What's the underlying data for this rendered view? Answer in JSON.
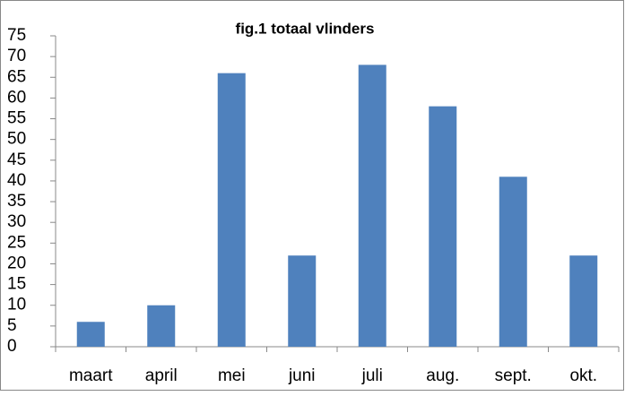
{
  "chart_data": {
    "type": "bar",
    "title": "fig.1 totaal vlinders",
    "categories": [
      "maart",
      "april",
      "mei",
      "juni",
      "juli",
      "aug.",
      "sept.",
      "okt."
    ],
    "values": [
      6,
      10,
      66,
      22,
      68,
      58,
      41,
      22
    ],
    "color": "#4f81bd",
    "ylim": [
      0,
      75
    ],
    "yticks": [
      0,
      5,
      10,
      15,
      20,
      25,
      30,
      35,
      40,
      45,
      50,
      55,
      60,
      65,
      70,
      75
    ],
    "grid": false
  }
}
